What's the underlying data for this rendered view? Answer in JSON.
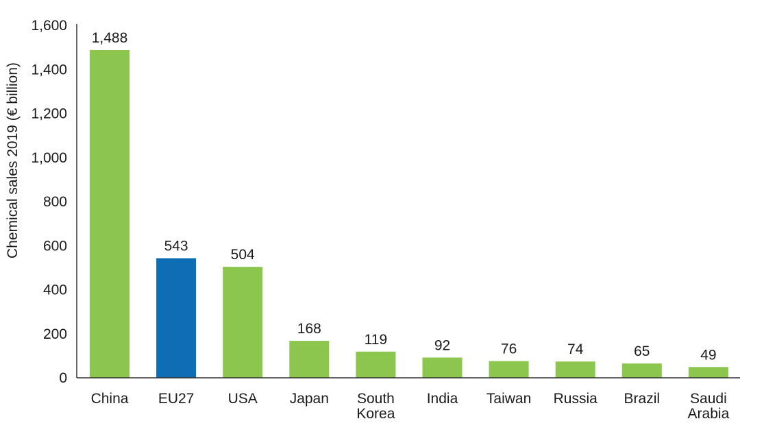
{
  "chart_data": {
    "type": "bar",
    "title": "",
    "xlabel": "",
    "ylabel": "Chemical sales 2019 (€ billion)",
    "ylim": [
      0,
      1600
    ],
    "yticks": [
      0,
      200,
      400,
      600,
      800,
      1000,
      1200,
      1400,
      1600
    ],
    "ytick_labels": [
      "0",
      "200",
      "400",
      "600",
      "800",
      "1,000",
      "1,200",
      "1,400",
      "1,600"
    ],
    "grid": false,
    "legend": "none",
    "categories": [
      [
        "China"
      ],
      [
        "EU27"
      ],
      [
        "USA"
      ],
      [
        "Japan"
      ],
      [
        "South",
        "Korea"
      ],
      [
        "India"
      ],
      [
        "Taiwan"
      ],
      [
        "Russia"
      ],
      [
        "Brazil"
      ],
      [
        "Saudi",
        "Arabia"
      ]
    ],
    "values": [
      1488,
      543,
      504,
      168,
      119,
      92,
      76,
      74,
      65,
      49
    ],
    "value_labels": [
      "1,488",
      "543",
      "504",
      "168",
      "119",
      "92",
      "76",
      "74",
      "65",
      "49"
    ],
    "bar_colors": [
      "#8dc64f",
      "#0f6db3",
      "#8dc64f",
      "#8dc64f",
      "#8dc64f",
      "#8dc64f",
      "#8dc64f",
      "#8dc64f",
      "#8dc64f",
      "#8dc64f"
    ]
  }
}
